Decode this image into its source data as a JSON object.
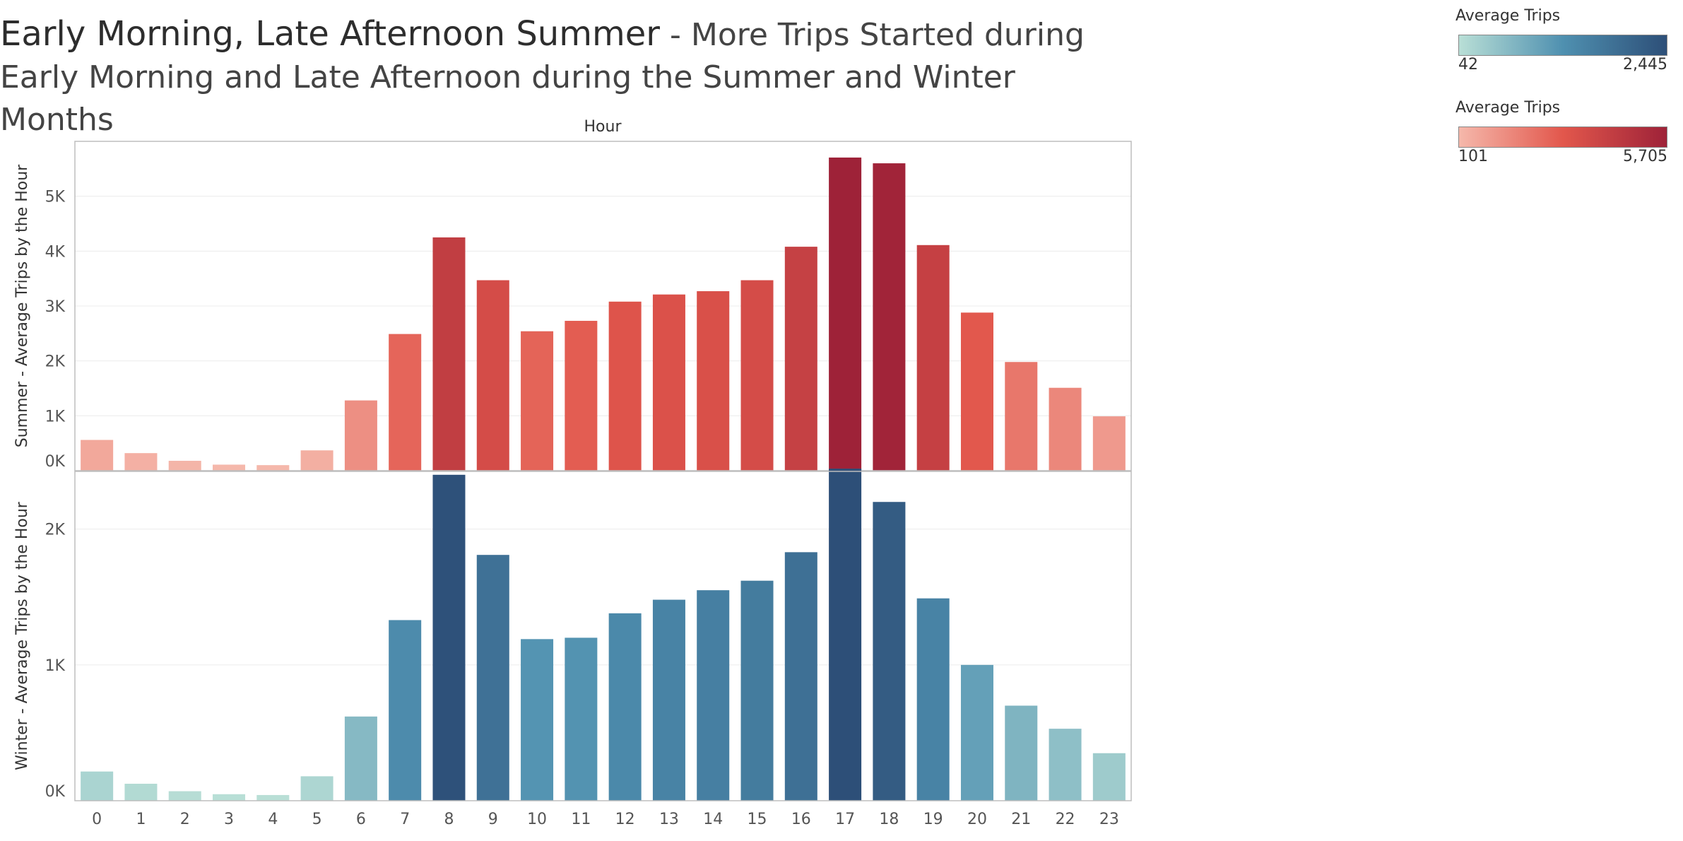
{
  "title": {
    "main": "Early Morning, Late Afternoon Summer",
    "sub": " - More Trips Started during Early Morning and Late Afternoon during the Summer and Winter Months"
  },
  "legends": [
    {
      "title": "Average Trips",
      "min_label": "42",
      "max_label": "2,445",
      "ramp_start": "#b9dfd6",
      "ramp_mid": "#4f90b0",
      "ramp_end": "#2d4f78"
    },
    {
      "title": "Average Trips",
      "min_label": "101",
      "max_label": "5,705",
      "ramp_start": "#f5b8ab",
      "ramp_mid": "#e2574c",
      "ramp_end": "#9e2238"
    }
  ],
  "chart_data": [
    {
      "type": "bar",
      "column_header": "Hour",
      "ylabel": "Summer - Average Trips by the Hour",
      "categories": [
        "0",
        "1",
        "2",
        "3",
        "4",
        "5",
        "6",
        "7",
        "8",
        "9",
        "10",
        "11",
        "12",
        "13",
        "14",
        "15",
        "16",
        "17",
        "18",
        "19",
        "20",
        "21",
        "22",
        "23"
      ],
      "values": [
        560,
        320,
        180,
        110,
        101,
        370,
        1280,
        2490,
        4250,
        3470,
        2540,
        2730,
        3080,
        3210,
        3270,
        3470,
        4080,
        5705,
        5600,
        4110,
        2880,
        1980,
        1510,
        990
      ],
      "ylim": [
        0,
        6000
      ],
      "yticks": [
        0,
        1000,
        2000,
        3000,
        4000,
        5000
      ],
      "ytick_labels": [
        "0K",
        "1K",
        "2K",
        "3K",
        "4K",
        "5K"
      ],
      "color_range": [
        101,
        5705
      ],
      "colors": [
        "#f5b8ab",
        "#e2574c",
        "#9e2238"
      ]
    },
    {
      "type": "bar",
      "ylabel": "Winter - Average Trips by the Hour",
      "categories": [
        "0",
        "1",
        "2",
        "3",
        "4",
        "5",
        "6",
        "7",
        "8",
        "9",
        "10",
        "11",
        "12",
        "13",
        "14",
        "15",
        "16",
        "17",
        "18",
        "19",
        "20",
        "21",
        "22",
        "23"
      ],
      "values": [
        215,
        125,
        70,
        48,
        42,
        180,
        620,
        1330,
        2400,
        1810,
        1190,
        1200,
        1380,
        1480,
        1550,
        1620,
        1830,
        2445,
        2200,
        1490,
        1000,
        700,
        530,
        350
      ],
      "ylim": [
        0,
        2425
      ],
      "yticks": [
        0,
        1000,
        2000
      ],
      "ytick_labels": [
        "0K",
        "1K",
        "2K"
      ],
      "color_range": [
        42,
        2445
      ],
      "colors": [
        "#b9dfd6",
        "#4f90b0",
        "#2d4f78"
      ]
    }
  ]
}
